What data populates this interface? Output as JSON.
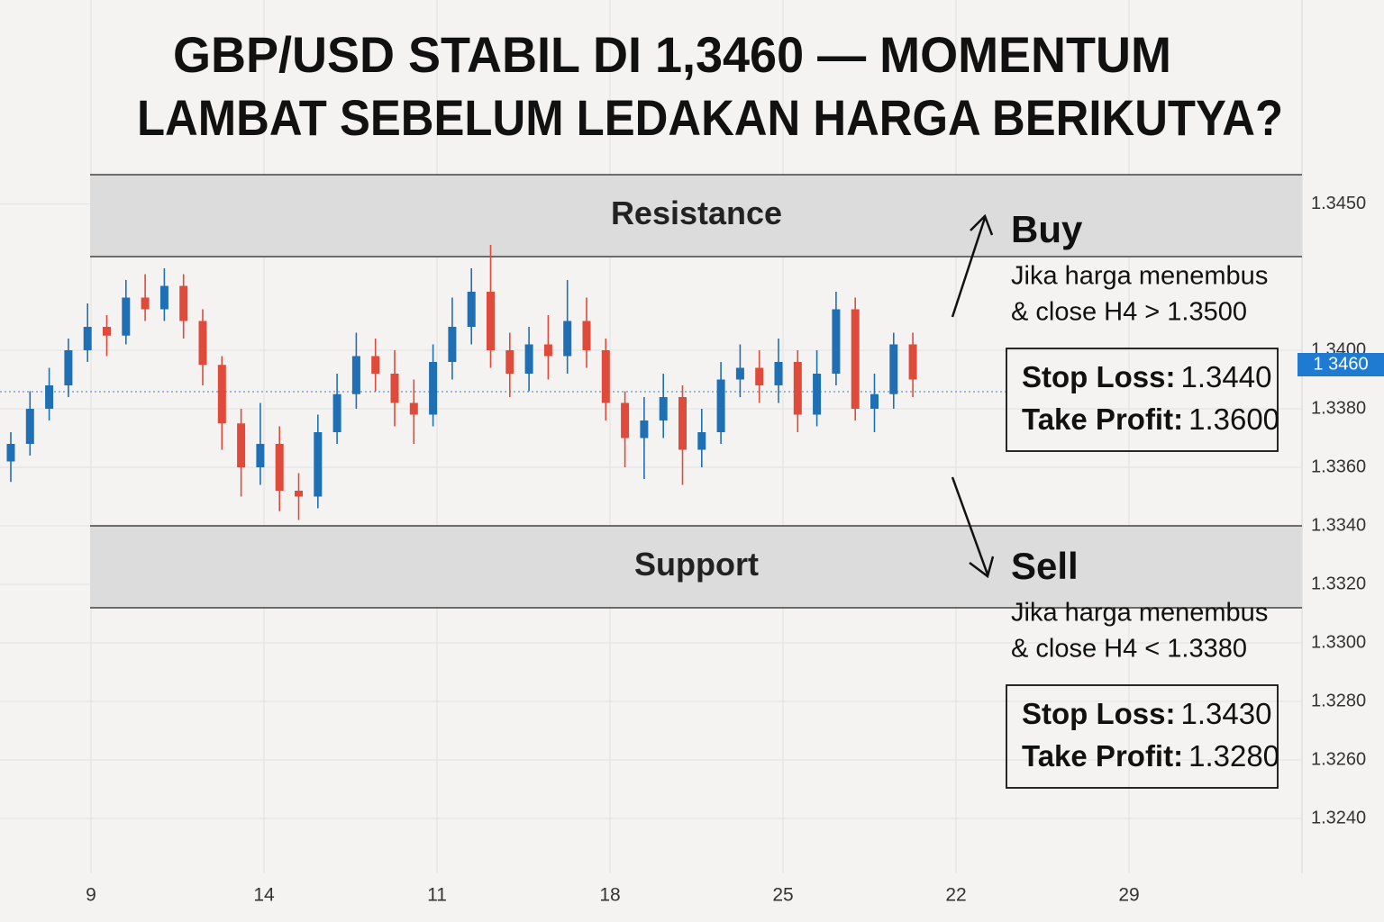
{
  "chart_data": {
    "type": "candlestick",
    "title": [
      "GBP/USD STABIL DI 1,3460 — MOMENTUM",
      "LAMBAT SEBELUM LEDAKAN HARGA BERIKUTYA?"
    ],
    "x_labels": [
      "9",
      "14",
      "11",
      "18",
      "25",
      "22",
      "29"
    ],
    "candles": {
      "open": [
        1.3362,
        1.3368,
        1.338,
        1.3388,
        1.34,
        1.3408,
        1.3405,
        1.3418,
        1.3414,
        1.3422,
        1.341,
        1.3395,
        1.3375,
        1.336,
        1.3368,
        1.3352,
        1.335,
        1.3372,
        1.3385,
        1.3398,
        1.3392,
        1.3382,
        1.3378,
        1.3396,
        1.3408,
        1.342,
        1.34,
        1.3392,
        1.3402,
        1.3398,
        1.341,
        1.34,
        1.3382,
        1.337,
        1.3376,
        1.3384,
        1.3366,
        1.3372,
        1.339,
        1.3394,
        1.3388,
        1.3396,
        1.3378,
        1.3392,
        1.3414,
        1.338,
        1.3385,
        1.3402
      ],
      "high": [
        1.3372,
        1.3386,
        1.3394,
        1.3404,
        1.3416,
        1.3412,
        1.3424,
        1.3426,
        1.3428,
        1.3426,
        1.3414,
        1.3398,
        1.338,
        1.3382,
        1.3374,
        1.3358,
        1.3378,
        1.3392,
        1.3406,
        1.3404,
        1.34,
        1.339,
        1.3402,
        1.3418,
        1.3428,
        1.3436,
        1.3406,
        1.3408,
        1.3412,
        1.3424,
        1.3418,
        1.3404,
        1.3386,
        1.3384,
        1.3392,
        1.3388,
        1.338,
        1.3396,
        1.3402,
        1.34,
        1.3404,
        1.34,
        1.34,
        1.342,
        1.3418,
        1.3392,
        1.3406,
        1.3406
      ],
      "low": [
        1.3355,
        1.3364,
        1.3376,
        1.3384,
        1.3396,
        1.3398,
        1.3402,
        1.341,
        1.341,
        1.3404,
        1.3388,
        1.3366,
        1.335,
        1.3354,
        1.3345,
        1.3342,
        1.3346,
        1.3368,
        1.338,
        1.3386,
        1.3374,
        1.3368,
        1.3374,
        1.339,
        1.3402,
        1.3394,
        1.3384,
        1.3386,
        1.339,
        1.3392,
        1.3394,
        1.3376,
        1.336,
        1.3356,
        1.337,
        1.3354,
        1.336,
        1.3368,
        1.3384,
        1.3382,
        1.3382,
        1.3372,
        1.3374,
        1.3388,
        1.3376,
        1.3372,
        1.338,
        1.3384
      ],
      "close": [
        1.3368,
        1.338,
        1.3388,
        1.34,
        1.3408,
        1.3405,
        1.3418,
        1.3414,
        1.3422,
        1.341,
        1.3395,
        1.3375,
        1.336,
        1.3368,
        1.3352,
        1.335,
        1.3372,
        1.3385,
        1.3398,
        1.3392,
        1.3382,
        1.3378,
        1.3396,
        1.3408,
        1.342,
        1.34,
        1.3392,
        1.3402,
        1.3398,
        1.341,
        1.34,
        1.3382,
        1.337,
        1.3376,
        1.3384,
        1.3366,
        1.3372,
        1.339,
        1.3394,
        1.3388,
        1.3396,
        1.3378,
        1.3392,
        1.3414,
        1.338,
        1.3385,
        1.3402,
        1.339
      ]
    },
    "up_color": "#1f6fb5",
    "down_color": "#e04a3a",
    "ylim": [
      1.322,
      1.346
    ],
    "yticks": [
      {
        "value": 1.345,
        "label": "1.3450"
      },
      {
        "value": 1.34,
        "label": "1.3400"
      },
      {
        "value": 1.338,
        "label": "1.3380"
      },
      {
        "value": 1.336,
        "label": "1.3360"
      },
      {
        "value": 1.334,
        "label": "1.3340"
      },
      {
        "value": 1.332,
        "label": "1.3320"
      },
      {
        "value": 1.33,
        "label": "1.3300"
      },
      {
        "value": 1.328,
        "label": "1.3280"
      },
      {
        "value": 1.326,
        "label": "1.3260"
      },
      {
        "value": 1.324,
        "label": "1.3240"
      }
    ],
    "grid": true,
    "current_price_label": "1 3460",
    "levels": [
      {
        "name": "Resistance",
        "range": [
          1.3432,
          1.346
        ]
      },
      {
        "name": "Support",
        "range": [
          1.3312,
          1.334
        ]
      }
    ],
    "signals": [
      {
        "label": "Buy",
        "condition": [
          "Jika harga menembus",
          "& close H4 > 1.3500"
        ],
        "stop_loss_label": "Stop Loss:",
        "stop_loss": "1.3440",
        "take_profit_label": "Take Profit:",
        "take_profit": "1.3600"
      },
      {
        "label": "Sell",
        "condition": [
          "Jika harga menembus",
          "& close H4 < 1.3380"
        ],
        "stop_loss_label": "Stop Loss:",
        "stop_loss": "1.3430",
        "take_profit_label": "Take Profit:",
        "take_profit": "1.3280"
      }
    ]
  }
}
